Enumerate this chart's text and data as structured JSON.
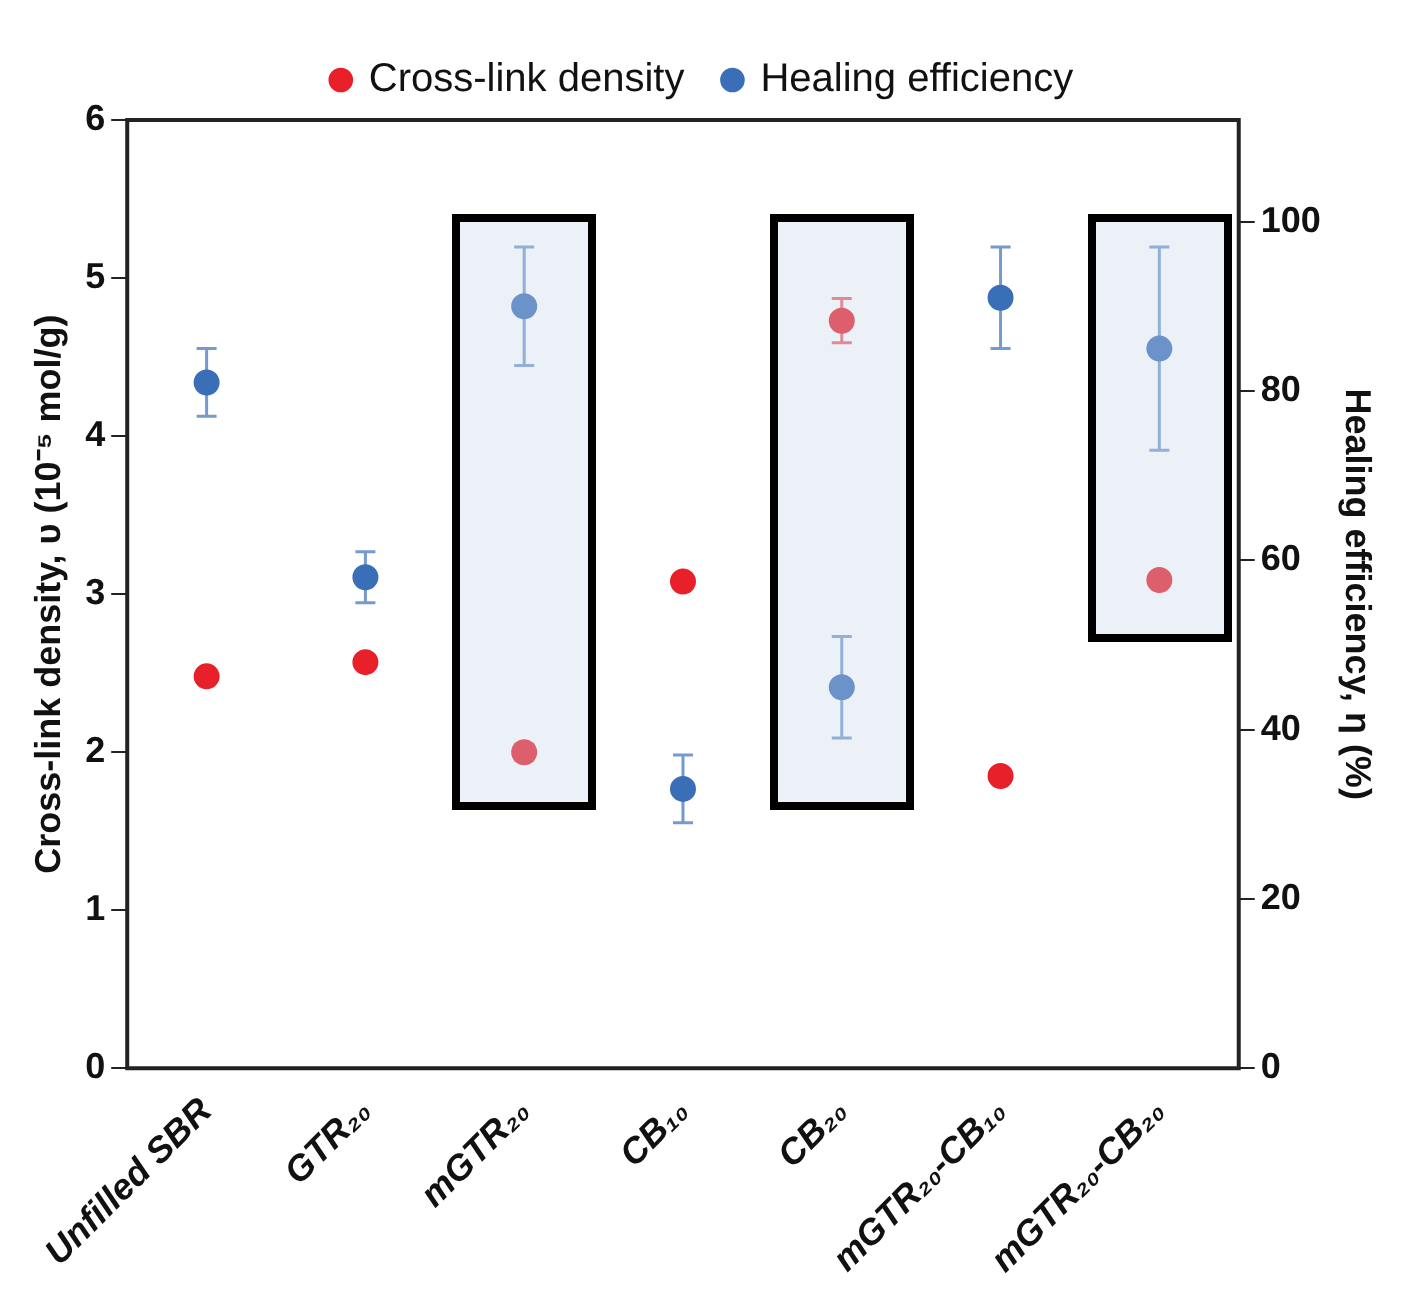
{
  "chart_data": {
    "type": "scatter",
    "xlabel": null,
    "ylabel": "Cross-link density, υ (10⁻⁵ mol/g)",
    "y2label": "Healing efficiency, η (%)",
    "categories": [
      "Unfilled SBR",
      "GTR₂₀",
      "mGTR₂₀",
      "CB₁₀",
      "CB₂₀",
      "mGTR₂₀-CB₁₀",
      "mGTR₂₀-CB₂₀"
    ],
    "series": [
      {
        "name": "Cross-link density",
        "color": "#e8202a",
        "values": [
          2.48,
          2.57,
          2.0,
          3.08,
          4.73,
          1.85,
          3.09
        ],
        "errors": [
          null,
          null,
          0.05,
          null,
          0.14,
          null,
          null
        ]
      },
      {
        "name": "Healing efficiency",
        "color": "#3a6fb8",
        "axis": "y2",
        "values": [
          81,
          58,
          90,
          33,
          45,
          91,
          85
        ],
        "errors": [
          4,
          3,
          7,
          4,
          6,
          6,
          12
        ]
      }
    ],
    "ylim": [
      0,
      6
    ],
    "yticks": [
      0,
      1,
      2,
      3,
      4,
      5,
      6
    ],
    "y2lim": [
      0,
      112
    ],
    "y2ticks": [
      0,
      20,
      40,
      60,
      80,
      100
    ],
    "grid": false,
    "legend": "top",
    "marker": "circle"
  }
}
